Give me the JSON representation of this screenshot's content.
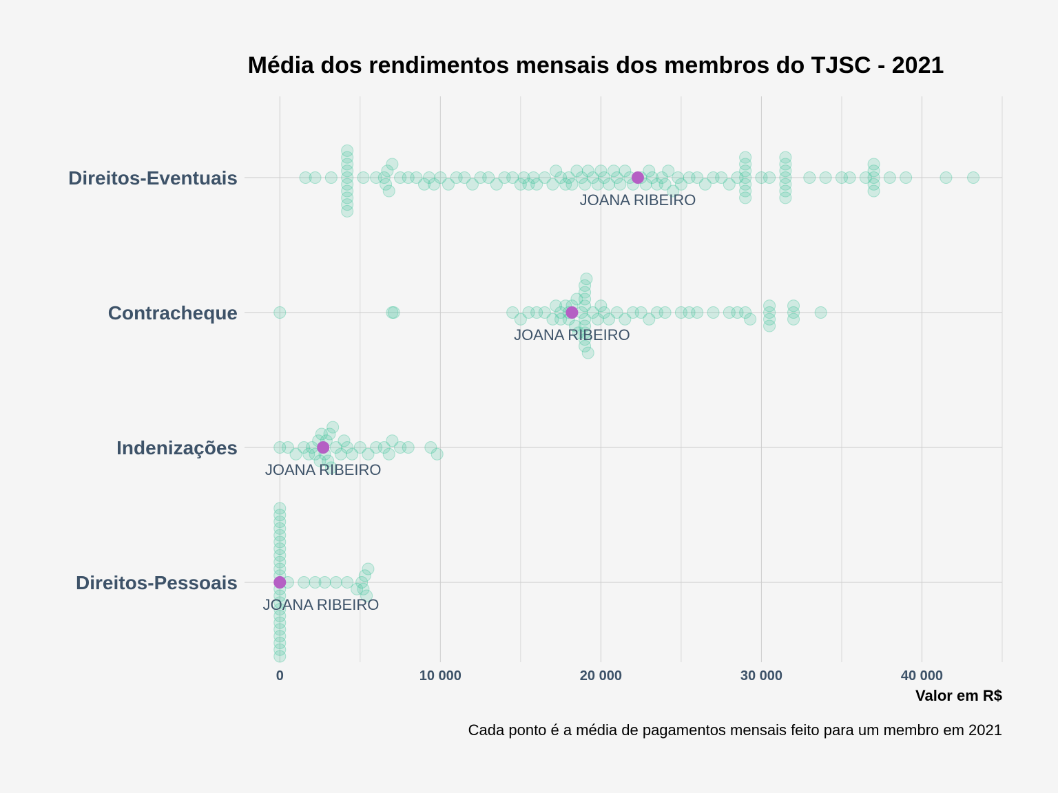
{
  "chart_data": {
    "type": "scatter",
    "title": "Média dos rendimentos mensais dos membros do TJSC - 2021",
    "xlabel": "Valor em R$",
    "ylabel": "",
    "caption": "Cada ponto é a média de pagamentos mensais feito para um membro em 2021",
    "xlim": [
      -2200,
      45000
    ],
    "x_ticks": [
      0,
      10000,
      20000,
      30000,
      40000
    ],
    "x_tick_labels": [
      "0",
      "10 000",
      "20 000",
      "30 000",
      "40 000"
    ],
    "grid": true,
    "point_color": "#2ebf91",
    "highlight_color": "#b55fc4",
    "categories": [
      "Direitos-Eventuais",
      "Contracheque",
      "Indenizações",
      "Direitos-Pessoais"
    ],
    "highlight": [
      {
        "category": "Direitos-Eventuais",
        "x": 22300,
        "label": "JOANA RIBEIRO"
      },
      {
        "category": "Contracheque",
        "x": 18200,
        "label": "JOANA RIBEIRO"
      },
      {
        "category": "Indenizações",
        "x": 2700,
        "label": "JOANA RIBEIRO"
      },
      {
        "category": "Direitos-Pessoais",
        "x": 0,
        "label": "JOANA RIBEIRO"
      }
    ],
    "series": [
      {
        "category": "Direitos-Eventuais",
        "values": [
          1600,
          2200,
          3200,
          4200,
          4200,
          4200,
          4200,
          4200,
          4200,
          4200,
          4200,
          4200,
          4200,
          5200,
          6000,
          6500,
          6600,
          6700,
          6800,
          7000,
          7500,
          8000,
          8500,
          9000,
          9300,
          9600,
          10000,
          10500,
          11000,
          11500,
          12000,
          12500,
          13000,
          13500,
          14000,
          14500,
          15000,
          15200,
          15500,
          15800,
          16000,
          16500,
          17000,
          17200,
          17500,
          17800,
          18000,
          18200,
          18500,
          18800,
          19000,
          19200,
          19500,
          19800,
          20000,
          20200,
          20500,
          20800,
          21000,
          21200,
          21500,
          21800,
          22000,
          22500,
          22800,
          23000,
          23200,
          23500,
          23800,
          24000,
          24200,
          24500,
          24800,
          25000,
          25500,
          26000,
          26500,
          27000,
          27500,
          28000,
          28500,
          29000,
          29000,
          29000,
          29000,
          29000,
          29000,
          29000,
          30000,
          30500,
          31500,
          31500,
          31500,
          31500,
          31500,
          31500,
          31500,
          33000,
          34000,
          35000,
          35500,
          36500,
          37000,
          37000,
          37000,
          37000,
          37000,
          38000,
          39000,
          41500,
          43200
        ]
      },
      {
        "category": "Contracheque",
        "values": [
          0,
          7000,
          7100,
          14500,
          15000,
          15500,
          16000,
          16500,
          17000,
          17200,
          17500,
          17500,
          17800,
          18000,
          18000,
          18200,
          18400,
          18500,
          18600,
          18800,
          19000,
          19000,
          19000,
          19000,
          19000,
          19000,
          19000,
          19000,
          19000,
          19100,
          19200,
          19500,
          19800,
          20000,
          20200,
          20500,
          21000,
          21500,
          22000,
          22500,
          23000,
          23500,
          24000,
          25000,
          25500,
          26000,
          27000,
          28000,
          28500,
          29000,
          29300,
          30500,
          30500,
          30500,
          30500,
          32000,
          32000,
          32000,
          33700
        ]
      },
      {
        "category": "Indenizações",
        "values": [
          0,
          500,
          1000,
          1500,
          1800,
          2000,
          2200,
          2400,
          2500,
          2600,
          2700,
          2800,
          2900,
          3000,
          3100,
          3200,
          3300,
          3500,
          3800,
          4000,
          4200,
          4500,
          5000,
          5500,
          6000,
          6500,
          6800,
          7000,
          7500,
          8000,
          9400,
          9800
        ]
      },
      {
        "category": "Direitos-Pessoais",
        "values": [
          0,
          0,
          0,
          0,
          0,
          0,
          0,
          0,
          0,
          0,
          0,
          0,
          0,
          0,
          0,
          0,
          0,
          0,
          0,
          0,
          0,
          0,
          0,
          500,
          1500,
          2200,
          2800,
          3500,
          4200,
          4800,
          5100,
          5200,
          5300,
          5400,
          5500
        ]
      }
    ]
  }
}
